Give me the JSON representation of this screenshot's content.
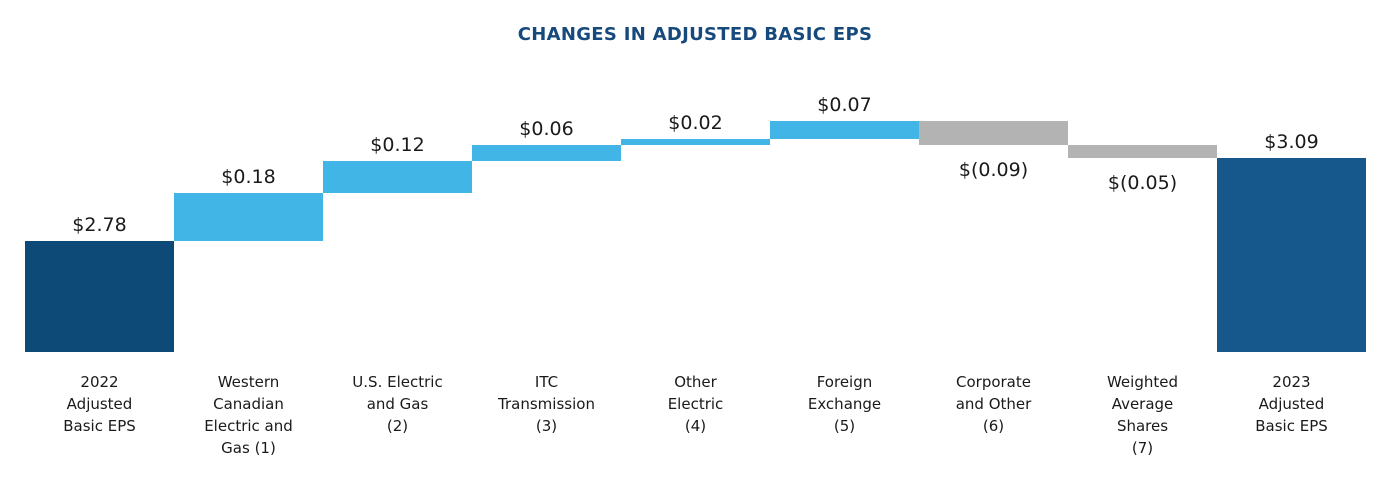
{
  "chart_data": {
    "type": "bar",
    "subtype": "waterfall",
    "title": "CHANGES IN ADJUSTED BASIC EPS",
    "xlabel": "",
    "ylabel": "",
    "grid": false,
    "legend": false,
    "ylim": [
      2.365,
      3.3
    ],
    "colors": {
      "start_total": "#0D4A77",
      "end_total": "#17588C",
      "increase": "#41B6E6",
      "decrease": "#B3B3B3",
      "title": "#174A7C",
      "label_text": "#1A1A1A"
    },
    "items": [
      {
        "category": "2022 Adjusted Basic EPS",
        "label_lines": [
          "2022",
          "Adjusted",
          "Basic EPS"
        ],
        "value": 2.78,
        "value_label": "$2.78",
        "role": "start_total"
      },
      {
        "category": "Western Canadian Electric and Gas (1)",
        "label_lines": [
          "Western",
          "Canadian",
          "Electric and",
          "Gas (1)"
        ],
        "value": 0.18,
        "value_label": "$0.18",
        "role": "increase"
      },
      {
        "category": "U.S. Electric and Gas (2)",
        "label_lines": [
          "U.S. Electric",
          "and Gas",
          "(2)"
        ],
        "value": 0.12,
        "value_label": "$0.12",
        "role": "increase"
      },
      {
        "category": "ITC Transmission (3)",
        "label_lines": [
          "ITC",
          "Transmission",
          "(3)"
        ],
        "value": 0.06,
        "value_label": "$0.06",
        "role": "increase"
      },
      {
        "category": "Other Electric (4)",
        "label_lines": [
          "Other",
          "Electric",
          "(4)"
        ],
        "value": 0.02,
        "value_label": "$0.02",
        "role": "increase"
      },
      {
        "category": "Foreign Exchange (5)",
        "label_lines": [
          "Foreign",
          "Exchange",
          "(5)"
        ],
        "value": 0.07,
        "value_label": "$0.07",
        "role": "increase"
      },
      {
        "category": "Corporate and Other (6)",
        "label_lines": [
          "Corporate",
          "and Other",
          "(6)"
        ],
        "value": -0.09,
        "value_label": "$(0.09)",
        "role": "decrease"
      },
      {
        "category": "Weighted Average Shares (7)",
        "label_lines": [
          "Weighted",
          "Average",
          "Shares",
          "(7)"
        ],
        "value": -0.05,
        "value_label": "$(0.05)",
        "role": "decrease"
      },
      {
        "category": "2023 Adjusted Basic EPS",
        "label_lines": [
          "2023",
          "Adjusted",
          "Basic EPS"
        ],
        "value": 3.09,
        "value_label": "$3.09",
        "role": "end_total"
      }
    ]
  }
}
